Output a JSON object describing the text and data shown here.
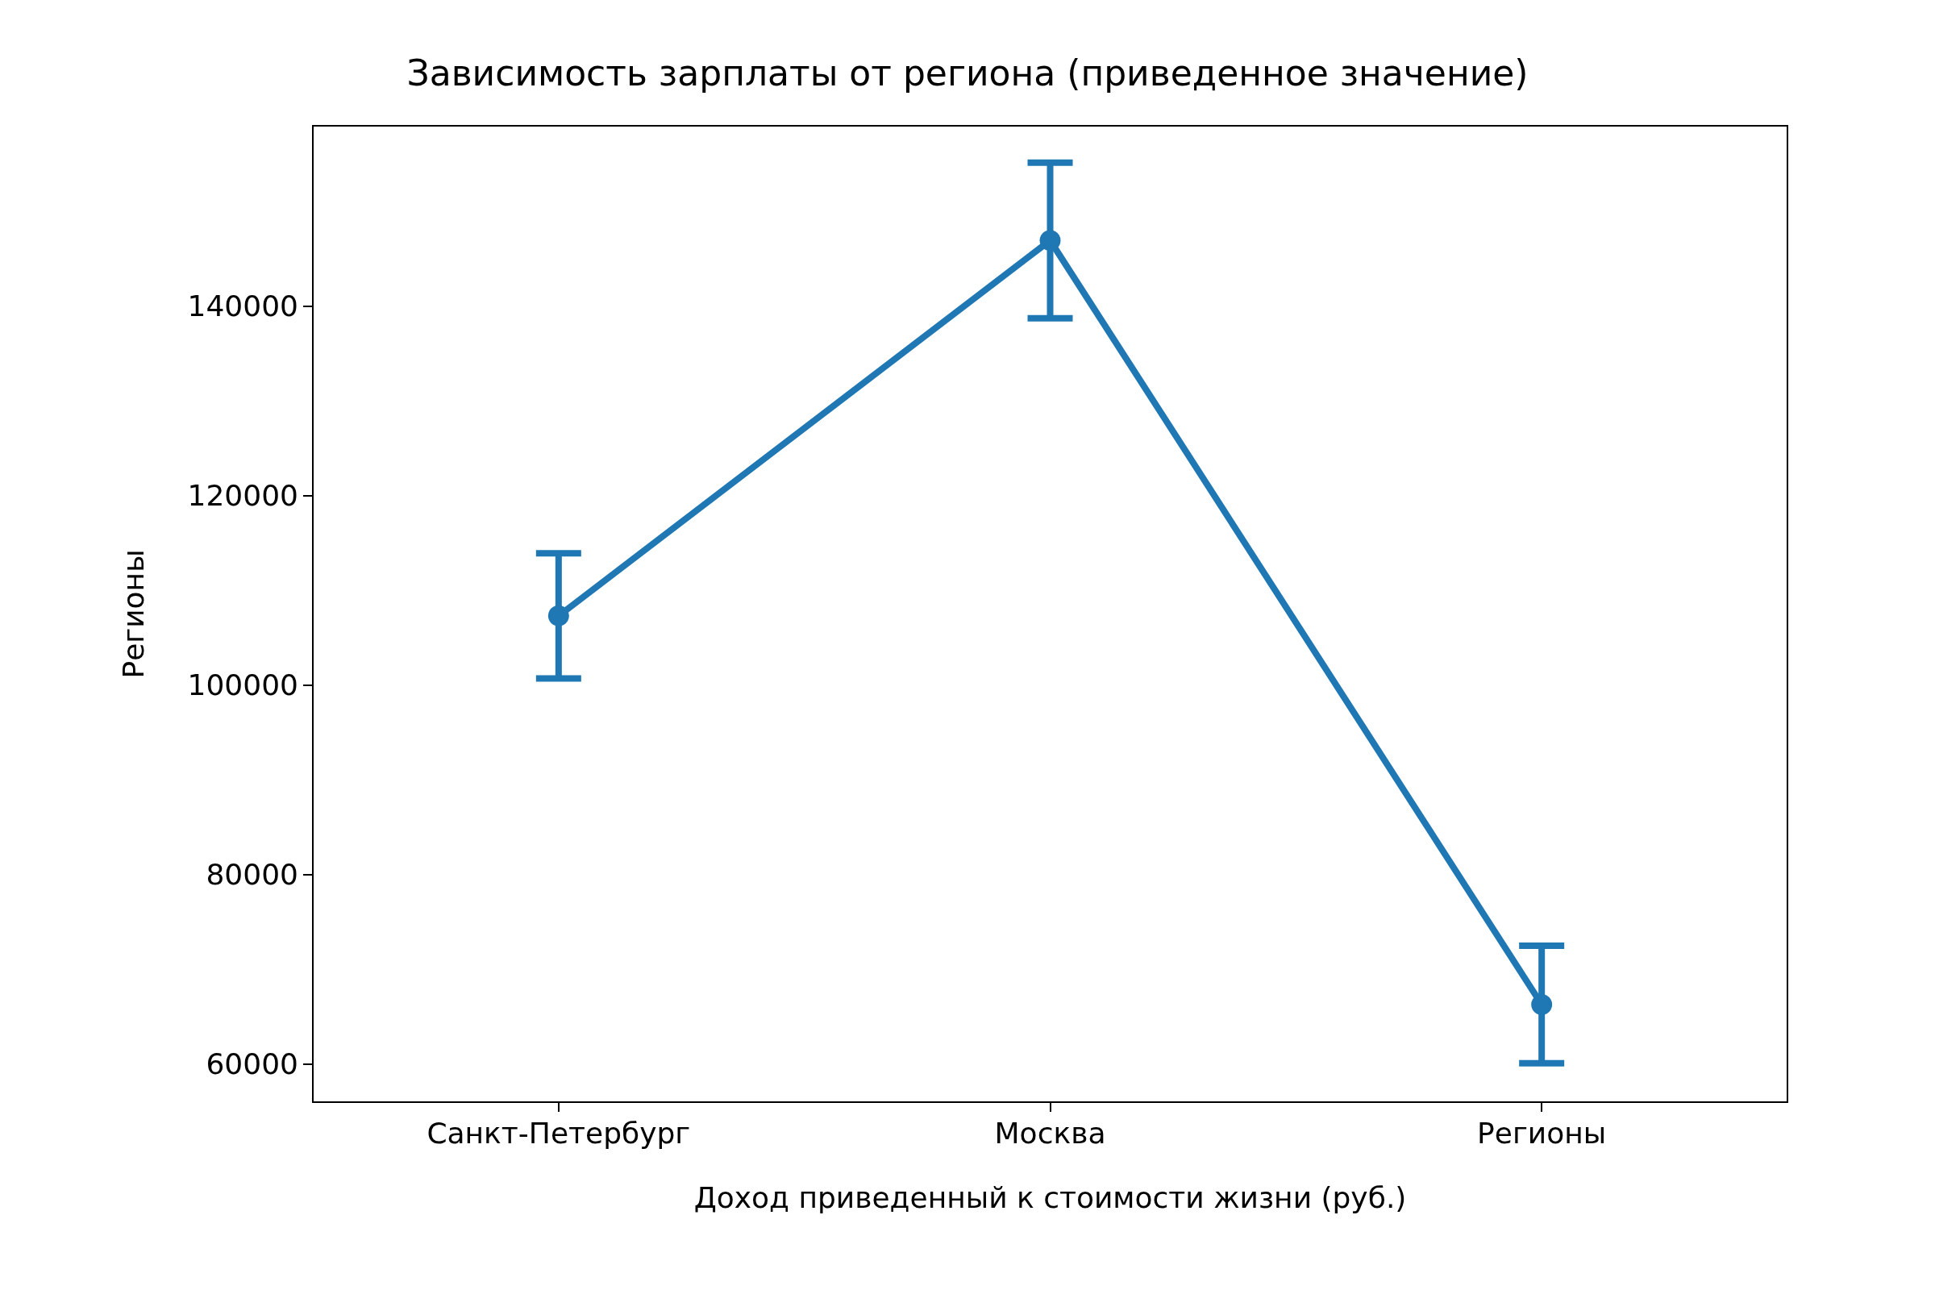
{
  "chart_data": {
    "type": "line",
    "title": "Зависимость зарплаты от региона (приведенное значение)",
    "xlabel": "Доход приведенный к стоимости жизни (руб.)",
    "ylabel": "Регионы",
    "categories": [
      "Санкт-Петербург",
      "Москва",
      "Регионы"
    ],
    "series": [
      {
        "color": "#1f77b4",
        "values": [
          107300,
          146900,
          66300
        ],
        "errors": [
          6600,
          8200,
          6200
        ]
      }
    ],
    "ylim": [
      56000,
      159000
    ],
    "yticks": [
      60000,
      80000,
      100000,
      120000,
      140000
    ],
    "grid": false,
    "marker": "circle",
    "line_style": "solid"
  }
}
